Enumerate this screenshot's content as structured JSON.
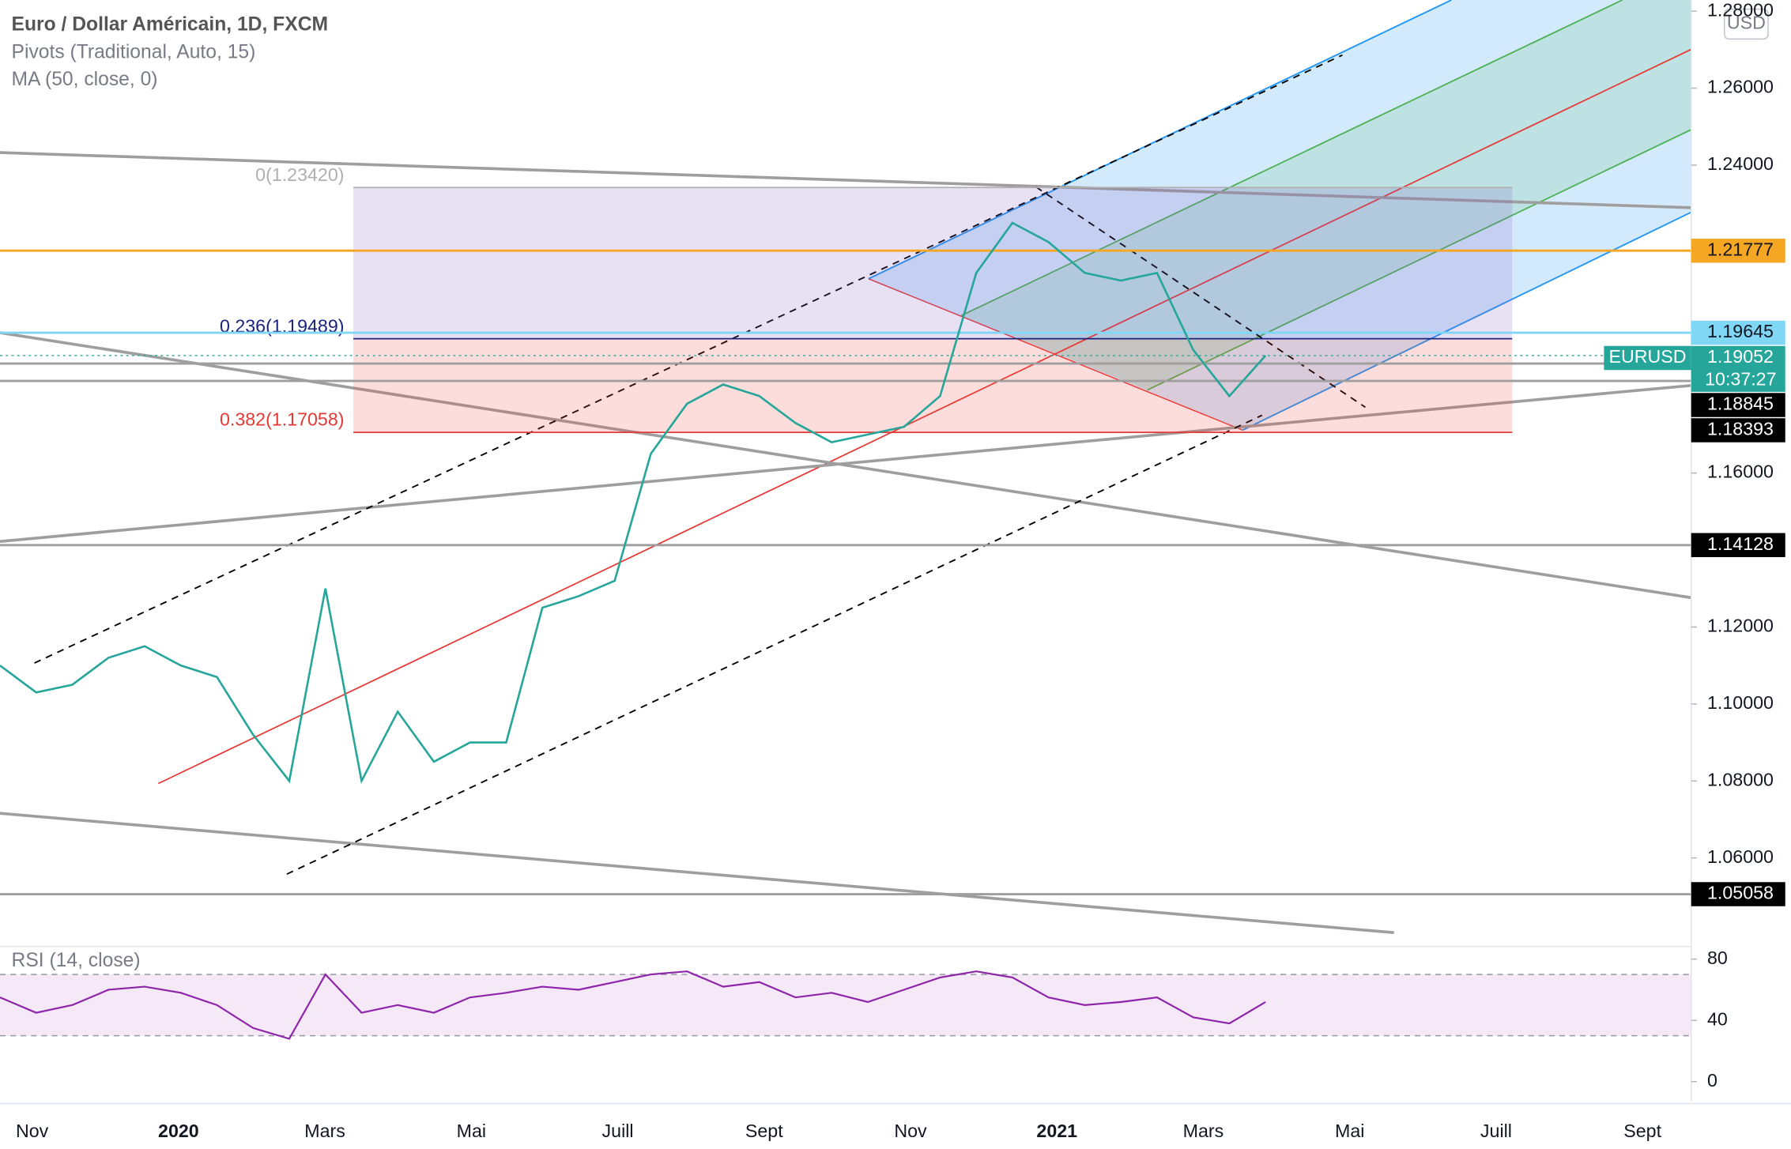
{
  "header": {
    "title": "Euro / Dollar Américain, 1D, FXCM",
    "indicators": [
      "Pivots (Traditional, Auto, 15)",
      "MA (50, close, 0)"
    ],
    "currency": "USD"
  },
  "chart_data": {
    "type": "line",
    "series": [
      {
        "name": "EURUSD",
        "color": "#26a69a",
        "values": [
          1.11,
          1.103,
          1.105,
          1.112,
          1.115,
          1.11,
          1.107,
          1.092,
          1.08,
          1.13,
          1.08,
          1.098,
          1.085,
          1.09,
          1.09,
          1.125,
          1.128,
          1.132,
          1.165,
          1.178,
          1.183,
          1.18,
          1.173,
          1.168,
          1.17,
          1.172,
          1.18,
          1.212,
          1.225,
          1.22,
          1.212,
          1.21,
          1.212,
          1.192,
          1.18,
          1.19052
        ]
      }
    ],
    "ylim": [
      1.0385,
      1.2829
    ],
    "yticks": [
      {
        "value": 1.06,
        "label": "1.06000"
      },
      {
        "value": 1.08,
        "label": "1.08000"
      },
      {
        "value": 1.1,
        "label": "1.10000"
      },
      {
        "value": 1.12,
        "label": "1.12000"
      },
      {
        "value": 1.16,
        "label": "1.16000"
      },
      {
        "value": 1.24,
        "label": "1.24000"
      },
      {
        "value": 1.26,
        "label": "1.26000"
      },
      {
        "value": 1.28,
        "label": "1.28000"
      }
    ],
    "x_labels": [
      "Nov",
      "2020",
      "Mars",
      "Mai",
      "Juill",
      "Sept",
      "Nov",
      "2021",
      "Mars",
      "Mai",
      "Juill",
      "Sept"
    ],
    "levels": [
      {
        "value": 1.21777,
        "color": "#f5a623"
      },
      {
        "value": 1.19645,
        "color": "#7fd6f5"
      },
      {
        "value": 1.18845,
        "color": "#000000"
      },
      {
        "value": 1.18393,
        "color": "#000000"
      },
      {
        "value": 1.14128,
        "color": "#000000"
      },
      {
        "value": 1.05058,
        "color": "#000000"
      }
    ],
    "current": {
      "symbol": "EURUSD",
      "value": 1.19052,
      "timer": "10:37:27",
      "color": "#26a69a"
    },
    "fib": [
      {
        "value": 1.2342,
        "label": "0(1.23420)",
        "color": "#b0b0b0"
      },
      {
        "value": 1.19489,
        "label": "0.236(1.19489)",
        "color": "#1a237e"
      },
      {
        "value": 1.17058,
        "label": "0.382(1.17058)",
        "color": "#e53935"
      }
    ]
  },
  "rsi": {
    "title": "RSI (14, close)",
    "ylim": [
      -12.8,
      88.3
    ],
    "yticks": [
      0,
      40,
      80
    ],
    "bands": [
      30,
      70
    ],
    "color": "#8e24aa",
    "values": [
      55,
      45,
      50,
      60,
      62,
      58,
      50,
      35,
      28,
      70,
      45,
      50,
      45,
      55,
      58,
      62,
      60,
      65,
      70,
      72,
      62,
      65,
      55,
      58,
      52,
      60,
      68,
      72,
      68,
      55,
      50,
      52,
      55,
      42,
      38,
      52
    ]
  }
}
